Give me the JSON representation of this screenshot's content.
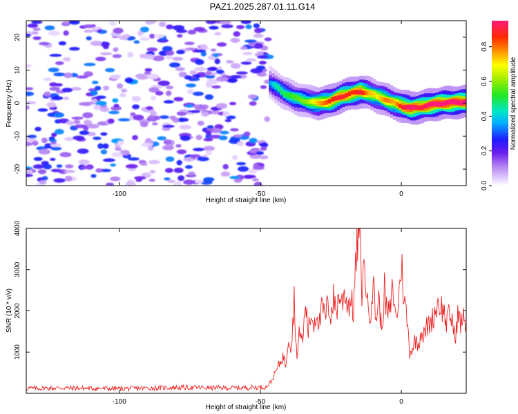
{
  "title": "PAZ1.2025.287.01.11.G14",
  "chart_data": [
    {
      "type": "heatmap",
      "xlabel": "Height of straight line (km)",
      "ylabel": "Frequency (Hz)",
      "xlim": [
        -133,
        23
      ],
      "ylim": [
        -25,
        25
      ],
      "xticks": [
        -100,
        -50,
        0
      ],
      "yticks": [
        -20,
        -10,
        0,
        10,
        20
      ],
      "colorbar": {
        "label": "Normalized spectral amplitude",
        "range": [
          0,
          0.95
        ],
        "ticks": [
          0.0,
          0.2,
          0.4,
          0.6,
          0.8
        ]
      },
      "noise_region": {
        "x_range": [
          -133,
          -47
        ],
        "y_range": [
          -25,
          25
        ],
        "amplitude_range": [
          0.0,
          0.35
        ]
      },
      "ridge": {
        "x": [
          -47,
          -45,
          -42,
          -38,
          -34,
          -30,
          -26,
          -22,
          -18,
          -15,
          -12,
          -9,
          -6,
          -3,
          0,
          3,
          6,
          10,
          14,
          18,
          23
        ],
        "frequency": [
          6,
          5,
          3,
          1.5,
          0.5,
          0,
          0.5,
          2,
          3,
          3.5,
          3,
          2,
          1,
          0,
          -1,
          -1.5,
          -1.2,
          -0.5,
          0,
          0.2,
          0.5
        ],
        "peak_amplitude": [
          0.35,
          0.45,
          0.5,
          0.55,
          0.6,
          0.75,
          0.85,
          0.9,
          0.85,
          0.9,
          0.75,
          0.7,
          0.8,
          0.75,
          0.9,
          0.95,
          0.9,
          0.95,
          0.95,
          0.95,
          0.95
        ]
      }
    },
    {
      "type": "line",
      "xlabel": "Height of straight line (km)",
      "ylabel": "SNR (10 * v/v)",
      "xlim": [
        -133,
        23
      ],
      "ylim": [
        0,
        4000
      ],
      "xticks": [
        -100,
        -50,
        0
      ],
      "yticks": [
        1000,
        2000,
        3000,
        4000
      ],
      "color": "#ee2222",
      "series": [
        {
          "x": [
            -133,
            -120,
            -100,
            -80,
            -60,
            -48,
            -46,
            -44,
            -42,
            -41,
            -40,
            -39,
            -38,
            -37,
            -36,
            -35,
            -34,
            -33,
            -32,
            -31,
            -30,
            -29,
            -28,
            -27,
            -26,
            -25,
            -24,
            -23,
            -22,
            -21,
            -20,
            -19,
            -18,
            -17,
            -16,
            -15,
            -14,
            -13,
            -12,
            -11,
            -10,
            -9,
            -8,
            -7,
            -6,
            -5,
            -4,
            -3,
            -2,
            -1,
            0,
            1,
            2,
            3,
            4,
            5,
            6,
            7,
            8,
            9,
            10,
            11,
            12,
            13,
            14,
            15,
            16,
            17,
            18,
            19,
            20,
            21,
            22,
            23
          ],
          "values": [
            120,
            130,
            110,
            140,
            130,
            150,
            300,
            600,
            900,
            700,
            1400,
            1100,
            2300,
            800,
            1600,
            1200,
            2200,
            1500,
            1900,
            1700,
            2000,
            1700,
            2100,
            1800,
            2200,
            1900,
            2300,
            2000,
            2400,
            2200,
            2500,
            2100,
            2300,
            2000,
            3300,
            4000,
            2500,
            3200,
            2100,
            2000,
            2700,
            1800,
            2300,
            1500,
            2500,
            1900,
            2000,
            2600,
            1800,
            2200,
            3200,
            2300,
            1800,
            1000,
            1100,
            1300,
            1200,
            1500,
            1400,
            1600,
            1700,
            1800,
            2000,
            2200,
            2100,
            2000,
            1700,
            1900,
            1800,
            1300,
            1900,
            1700,
            1800,
            1700
          ]
        }
      ]
    }
  ]
}
